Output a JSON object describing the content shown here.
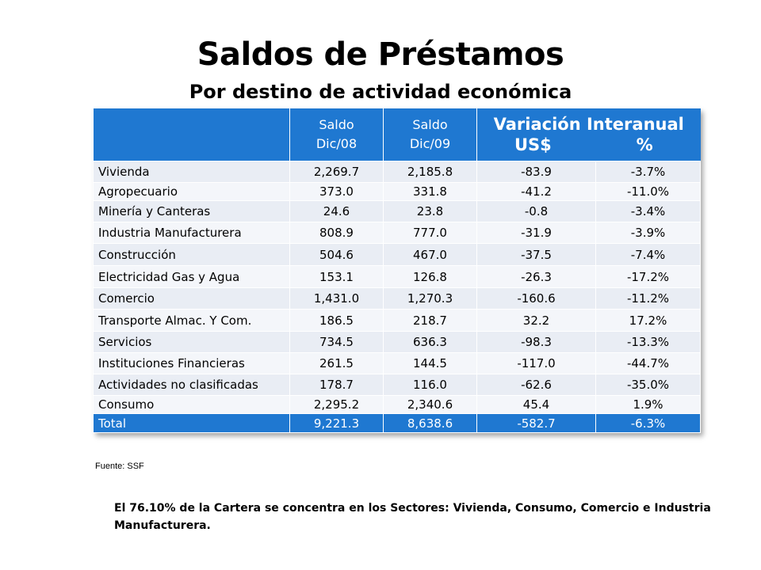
{
  "title": "Saldos de Préstamos",
  "subtitle": "Por destino de actividad económica",
  "table": {
    "header": {
      "col1_line1": "Saldo",
      "col1_line2": "Dic/08",
      "col2_line1": "Saldo",
      "col2_line2": "Dic/09",
      "variation": "Variación Interanual",
      "variation_usd": "US$",
      "variation_pct": "%"
    },
    "rows": [
      [
        "Vivienda",
        "2,269.7",
        "2,185.8",
        "-83.9",
        "-3.7%"
      ],
      [
        "Agropecuario",
        "373.0",
        "331.8",
        "-41.2",
        "-11.0%"
      ],
      [
        "Minería y Canteras",
        "24.6",
        "23.8",
        "-0.8",
        "-3.4%"
      ],
      [
        "Industria Manufacturera",
        "808.9",
        "777.0",
        "-31.9",
        "-3.9%"
      ],
      [
        "Construcción",
        "504.6",
        "467.0",
        "-37.5",
        "-7.4%"
      ],
      [
        "Electricidad Gas y Agua",
        "153.1",
        "126.8",
        "-26.3",
        "-17.2%"
      ],
      [
        "Comercio",
        "1,431.0",
        "1,270.3",
        "-160.6",
        "-11.2%"
      ],
      [
        "Transporte Almac. Y Com.",
        "186.5",
        "218.7",
        "32.2",
        "17.2%"
      ],
      [
        "Servicios",
        "734.5",
        "636.3",
        "-98.3",
        "-13.3%"
      ],
      [
        "Instituciones Financieras",
        "261.5",
        "144.5",
        "-117.0",
        "-44.7%"
      ],
      [
        "Actividades no clasificadas",
        "178.7",
        "116.0",
        "-62.6",
        "-35.0%"
      ],
      [
        "Consumo",
        "2,295.2",
        "2,340.6",
        "45.4",
        "1.9%"
      ]
    ],
    "total": [
      "Total",
      "9,221.3",
      "8,638.6",
      "-582.7",
      "-6.3%"
    ]
  },
  "source": "Fuente: SSF",
  "note": "El 76.10% de la Cartera se concentra en los Sectores: Vivienda, Consumo, Comercio e Industria Manufacturera.",
  "colors": {
    "header_blue": "#1f78d1",
    "row_light": "#e9edf4"
  }
}
